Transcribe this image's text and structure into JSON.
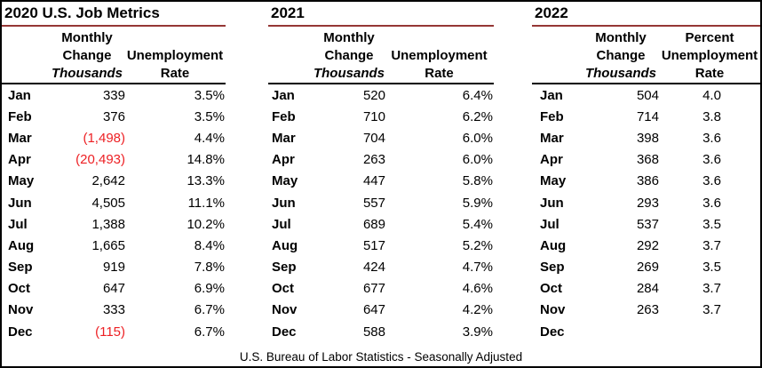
{
  "colors": {
    "negative_value": "#ed2024",
    "title_underline": "#953735",
    "header_underline": "#000000",
    "outer_border": "#000000"
  },
  "footer": {
    "text": "U.S. Bureau of Labor Statistics - Seasonally Adjusted"
  },
  "sections": [
    {
      "title": "2020 U.S. Job Metrics",
      "change_header": {
        "line1": "Monthly",
        "line2": "Change",
        "line3": "Thousands"
      },
      "rate_header": {
        "line1": "",
        "line2": "Unemployment",
        "line3": "Rate"
      },
      "rows": [
        {
          "month": "Jan",
          "change": "339",
          "rate": "3.5%",
          "negative": false
        },
        {
          "month": "Feb",
          "change": "376",
          "rate": "3.5%",
          "negative": false
        },
        {
          "month": "Mar",
          "change": "(1,498)",
          "rate": "4.4%",
          "negative": true
        },
        {
          "month": "Apr",
          "change": "(20,493)",
          "rate": "14.8%",
          "negative": true
        },
        {
          "month": "May",
          "change": "2,642",
          "rate": "13.3%",
          "negative": false
        },
        {
          "month": "Jun",
          "change": "4,505",
          "rate": "11.1%",
          "negative": false
        },
        {
          "month": "Jul",
          "change": "1,388",
          "rate": "10.2%",
          "negative": false
        },
        {
          "month": "Aug",
          "change": "1,665",
          "rate": "8.4%",
          "negative": false
        },
        {
          "month": "Sep",
          "change": "919",
          "rate": "7.8%",
          "negative": false
        },
        {
          "month": "Oct",
          "change": "647",
          "rate": "6.9%",
          "negative": false
        },
        {
          "month": "Nov",
          "change": "333",
          "rate": "6.7%",
          "negative": false
        },
        {
          "month": "Dec",
          "change": "(115)",
          "rate": "6.7%",
          "negative": true
        }
      ]
    },
    {
      "title": "2021",
      "change_header": {
        "line1": "Monthly",
        "line2": "Change",
        "line3": "Thousands"
      },
      "rate_header": {
        "line1": "",
        "line2": "Unemployment",
        "line3": "Rate"
      },
      "rows": [
        {
          "month": "Jan",
          "change": "520",
          "rate": "6.4%",
          "negative": false
        },
        {
          "month": "Feb",
          "change": "710",
          "rate": "6.2%",
          "negative": false
        },
        {
          "month": "Mar",
          "change": "704",
          "rate": "6.0%",
          "negative": false
        },
        {
          "month": "Apr",
          "change": "263",
          "rate": "6.0%",
          "negative": false
        },
        {
          "month": "May",
          "change": "447",
          "rate": "5.8%",
          "negative": false
        },
        {
          "month": "Jun",
          "change": "557",
          "rate": "5.9%",
          "negative": false
        },
        {
          "month": "Jul",
          "change": "689",
          "rate": "5.4%",
          "negative": false
        },
        {
          "month": "Aug",
          "change": "517",
          "rate": "5.2%",
          "negative": false
        },
        {
          "month": "Sep",
          "change": "424",
          "rate": "4.7%",
          "negative": false
        },
        {
          "month": "Oct",
          "change": "677",
          "rate": "4.6%",
          "negative": false
        },
        {
          "month": "Nov",
          "change": "647",
          "rate": "4.2%",
          "negative": false
        },
        {
          "month": "Dec",
          "change": "588",
          "rate": "3.9%",
          "negative": false
        }
      ]
    },
    {
      "title": "2022",
      "change_header": {
        "line1": "Monthly",
        "line2": "Change",
        "line3": "Thousands"
      },
      "rate_header": {
        "line1": "Percent",
        "line2": "Unemployment",
        "line3": "Rate"
      },
      "rows": [
        {
          "month": "Jan",
          "change": "504",
          "rate": "4.0",
          "negative": false
        },
        {
          "month": "Feb",
          "change": "714",
          "rate": "3.8",
          "negative": false
        },
        {
          "month": "Mar",
          "change": "398",
          "rate": "3.6",
          "negative": false
        },
        {
          "month": "Apr",
          "change": "368",
          "rate": "3.6",
          "negative": false
        },
        {
          "month": "May",
          "change": "386",
          "rate": "3.6",
          "negative": false
        },
        {
          "month": "Jun",
          "change": "293",
          "rate": "3.6",
          "negative": false
        },
        {
          "month": "Jul",
          "change": "537",
          "rate": "3.5",
          "negative": false
        },
        {
          "month": "Aug",
          "change": "292",
          "rate": "3.7",
          "negative": false
        },
        {
          "month": "Sep",
          "change": "269",
          "rate": "3.5",
          "negative": false
        },
        {
          "month": "Oct",
          "change": "284",
          "rate": "3.7",
          "negative": false
        },
        {
          "month": "Nov",
          "change": "263",
          "rate": "3.7",
          "negative": false
        },
        {
          "month": "Dec",
          "change": "",
          "rate": "",
          "negative": false
        }
      ]
    }
  ]
}
